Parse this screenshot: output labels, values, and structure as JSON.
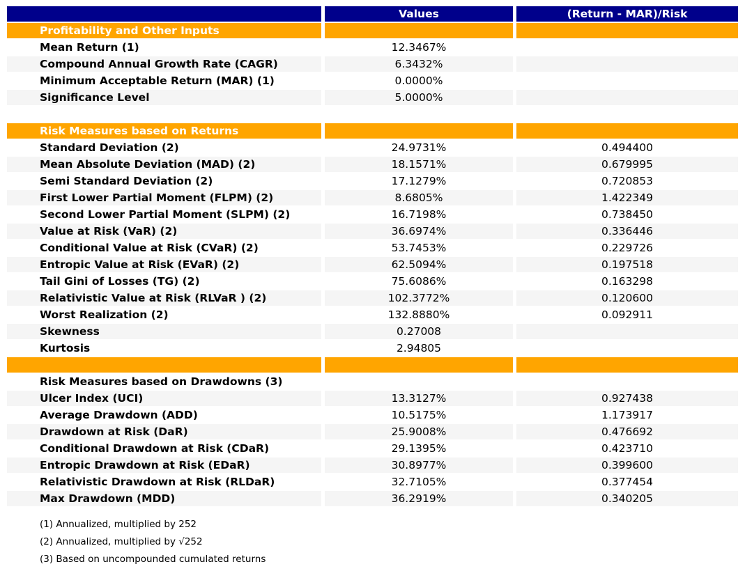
{
  "colors": {
    "header_bg": "#00008B",
    "section_bg": "#FFA500",
    "stripe_bg": "#F5F5F5",
    "header_text": "#FFFFFF",
    "body_text": "#000000"
  },
  "chart_data": {
    "type": "table",
    "columns": [
      "",
      "Values",
      "(Return - MAR)/Risk"
    ],
    "rows": [
      {
        "kind": "section",
        "label": "Profitability and Other Inputs",
        "value": "",
        "ratio": ""
      },
      {
        "kind": "data",
        "striped": false,
        "label": "Mean Return (1)",
        "value": "12.3467%",
        "ratio": ""
      },
      {
        "kind": "data",
        "striped": true,
        "label": "Compound Annual Growth Rate (CAGR)",
        "value": "6.3432%",
        "ratio": ""
      },
      {
        "kind": "data",
        "striped": false,
        "label": "Minimum Acceptable Return (MAR) (1)",
        "value": "0.0000%",
        "ratio": ""
      },
      {
        "kind": "data",
        "striped": true,
        "label": "Significance Level",
        "value": "5.0000%",
        "ratio": ""
      },
      {
        "kind": "blank",
        "label": "",
        "value": "",
        "ratio": ""
      },
      {
        "kind": "section",
        "label": "Risk Measures based on Returns",
        "value": "",
        "ratio": ""
      },
      {
        "kind": "data",
        "striped": false,
        "label": "Standard Deviation (2)",
        "value": "24.9731%",
        "ratio": "0.494400"
      },
      {
        "kind": "data",
        "striped": true,
        "label": "Mean Absolute Deviation (MAD) (2)",
        "value": "18.1571%",
        "ratio": "0.679995"
      },
      {
        "kind": "data",
        "striped": false,
        "label": "Semi Standard Deviation (2)",
        "value": "17.1279%",
        "ratio": "0.720853"
      },
      {
        "kind": "data",
        "striped": true,
        "label": "First Lower Partial Moment (FLPM) (2)",
        "value": "8.6805%",
        "ratio": "1.422349"
      },
      {
        "kind": "data",
        "striped": false,
        "label": "Second Lower Partial Moment (SLPM) (2)",
        "value": "16.7198%",
        "ratio": "0.738450"
      },
      {
        "kind": "data",
        "striped": true,
        "label": "Value at Risk (VaR) (2)",
        "value": "36.6974%",
        "ratio": "0.336446"
      },
      {
        "kind": "data",
        "striped": false,
        "label": "Conditional Value at Risk (CVaR) (2)",
        "value": "53.7453%",
        "ratio": "0.229726"
      },
      {
        "kind": "data",
        "striped": true,
        "label": "Entropic Value at Risk (EVaR) (2)",
        "value": "62.5094%",
        "ratio": "0.197518"
      },
      {
        "kind": "data",
        "striped": false,
        "label": "Tail Gini of Losses (TG) (2)",
        "value": "75.6086%",
        "ratio": "0.163298"
      },
      {
        "kind": "data",
        "striped": true,
        "label": "Relativistic Value at Risk (RLVaR ) (2)",
        "value": "102.3772%",
        "ratio": "0.120600"
      },
      {
        "kind": "data",
        "striped": false,
        "label": "Worst Realization (2)",
        "value": "132.8880%",
        "ratio": "0.092911"
      },
      {
        "kind": "data",
        "striped": true,
        "label": "Skewness",
        "value": "0.27008",
        "ratio": ""
      },
      {
        "kind": "data",
        "striped": false,
        "label": "Kurtosis",
        "value": "2.94805",
        "ratio": ""
      },
      {
        "kind": "section",
        "label": "",
        "value": "",
        "ratio": ""
      },
      {
        "kind": "subtitle",
        "label": "Risk Measures based on Drawdowns (3)",
        "value": "",
        "ratio": ""
      },
      {
        "kind": "data",
        "striped": true,
        "label": "Ulcer Index (UCI)",
        "value": "13.3127%",
        "ratio": "0.927438"
      },
      {
        "kind": "data",
        "striped": false,
        "label": "Average Drawdown (ADD)",
        "value": "10.5175%",
        "ratio": "1.173917"
      },
      {
        "kind": "data",
        "striped": true,
        "label": "Drawdown at Risk (DaR)",
        "value": "25.9008%",
        "ratio": "0.476692"
      },
      {
        "kind": "data",
        "striped": false,
        "label": "Conditional Drawdown at Risk (CDaR)",
        "value": "29.1395%",
        "ratio": "0.423710"
      },
      {
        "kind": "data",
        "striped": true,
        "label": "Entropic Drawdown at Risk (EDaR)",
        "value": "30.8977%",
        "ratio": "0.399600"
      },
      {
        "kind": "data",
        "striped": false,
        "label": "Relativistic Drawdown at Risk (RLDaR)",
        "value": "32.7105%",
        "ratio": "0.377454"
      },
      {
        "kind": "data",
        "striped": true,
        "label": "Max Drawdown (MDD)",
        "value": "36.2919%",
        "ratio": "0.340205"
      }
    ],
    "footnotes": [
      "(1) Annualized, multiplied by 252",
      "(2) Annualized, multiplied by √252",
      "(3) Based on uncompounded cumulated returns"
    ]
  }
}
